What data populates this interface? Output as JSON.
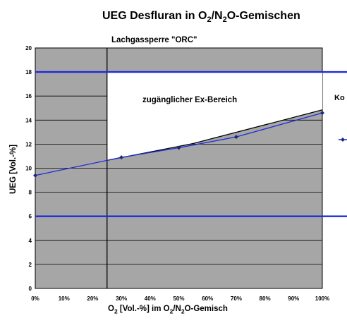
{
  "chart_data": {
    "type": "line",
    "title_main": "UEG Desfluran in O",
    "title_sub1": "2",
    "title_mid": "/N",
    "title_sub2": "2",
    "title_end": "O-Gemischen",
    "subtitle": "Lachgassperre \"ORC\"",
    "ylabel": "UEG [Vol.-%]",
    "xlabel_pre": "O",
    "xlabel_sub1": "2",
    "xlabel_mid": " [Vol.-%] im O",
    "xlabel_sub2": "2",
    "xlabel_mid2": "/N",
    "xlabel_sub3": "2",
    "xlabel_end": "O-Gemisch",
    "annotation": "zugänglicher Ex-Bereich",
    "legend_fragment": "Ko",
    "x_ticks": [
      "0%",
      "10%",
      "20%",
      "30%",
      "40%",
      "50%",
      "60%",
      "70%",
      "80%",
      "90%",
      "100%"
    ],
    "y_ticks": [
      "0",
      "2",
      "4",
      "6",
      "8",
      "10",
      "12",
      "14",
      "16",
      "18",
      "20"
    ],
    "xlim": [
      0,
      100
    ],
    "ylim": [
      0,
      20
    ],
    "grid": "horizontal",
    "background_color": "#a6a6a6",
    "series": [
      {
        "color": "#1f2ad8",
        "x": [
          0,
          30,
          50,
          70,
          100
        ],
        "y": [
          9.4,
          10.9,
          11.7,
          12.6,
          14.6
        ]
      },
      {
        "color": "#000000",
        "x": [
          25,
          55,
          100
        ],
        "y": [
          10.65,
          12.05,
          14.85
        ]
      }
    ],
    "hlines": [
      {
        "y": 18,
        "color": "#1f2ad8"
      },
      {
        "y": 6,
        "color": "#1f2ad8"
      }
    ],
    "vline_x": 25,
    "accessible_region_color": "#ffffff"
  }
}
